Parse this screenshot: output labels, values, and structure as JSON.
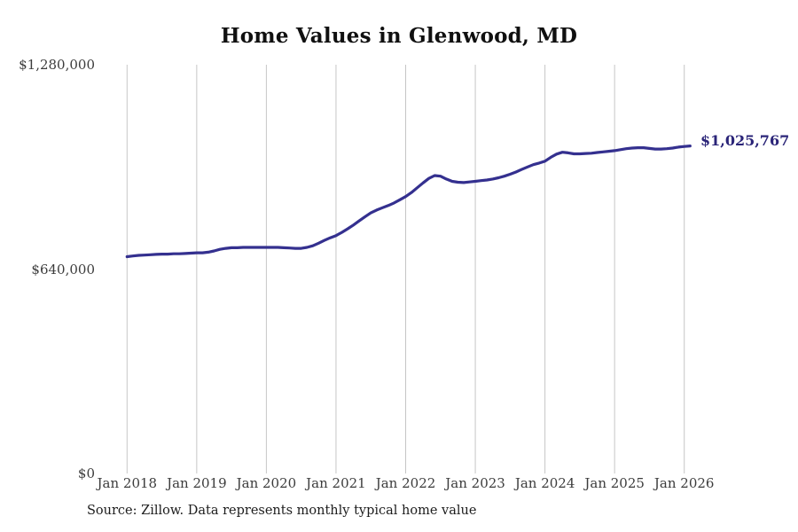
{
  "page": {
    "title": "Home Values in Glenwood, MD",
    "source": "Source: Zillow. Data represents monthly typical home value"
  },
  "chart_data": {
    "type": "line",
    "title": "Home Values in Glenwood, MD",
    "series_name": "Monthly typical home value",
    "ylim": [
      0,
      1280000
    ],
    "grid": "vertical-only",
    "legend": "none",
    "line_color": "#34308f",
    "latest_label_color": "#2a2478",
    "grid_color": "#c6c6c6",
    "tick_color": "#3c3c3c",
    "latest_value": 1025767,
    "latest_value_label": "$1,025,767",
    "y_ticks": [
      {
        "value": 0,
        "label": "$0"
      },
      {
        "value": 640000,
        "label": "$640,000"
      },
      {
        "value": 1280000,
        "label": "$1,280,000"
      }
    ],
    "x_ticks": [
      "Jan 2018",
      "Jan 2019",
      "Jan 2020",
      "Jan 2021",
      "Jan 2022",
      "Jan 2023",
      "Jan 2024",
      "Jan 2025",
      "Jan 2026"
    ],
    "x_months": [
      "2018-01",
      "2018-02",
      "2018-03",
      "2018-04",
      "2018-05",
      "2018-06",
      "2018-07",
      "2018-08",
      "2018-09",
      "2018-10",
      "2018-11",
      "2018-12",
      "2019-01",
      "2019-02",
      "2019-03",
      "2019-04",
      "2019-05",
      "2019-06",
      "2019-07",
      "2019-08",
      "2019-09",
      "2019-10",
      "2019-11",
      "2019-12",
      "2020-01",
      "2020-02",
      "2020-03",
      "2020-04",
      "2020-05",
      "2020-06",
      "2020-07",
      "2020-08",
      "2020-09",
      "2020-10",
      "2020-11",
      "2020-12",
      "2021-01",
      "2021-02",
      "2021-03",
      "2021-04",
      "2021-05",
      "2021-06",
      "2021-07",
      "2021-08",
      "2021-09",
      "2021-10",
      "2021-11",
      "2021-12",
      "2022-01",
      "2022-02",
      "2022-03",
      "2022-04",
      "2022-05",
      "2022-06",
      "2022-07",
      "2022-08",
      "2022-09",
      "2022-10",
      "2022-11",
      "2022-12",
      "2023-01",
      "2023-02",
      "2023-03",
      "2023-04",
      "2023-05",
      "2023-06",
      "2023-07",
      "2023-08",
      "2023-09",
      "2023-10",
      "2023-11",
      "2023-12",
      "2024-01",
      "2024-02",
      "2024-03",
      "2024-04",
      "2024-05",
      "2024-06",
      "2024-07",
      "2024-08",
      "2024-09",
      "2024-10",
      "2024-11",
      "2024-12",
      "2025-01",
      "2025-02",
      "2025-03",
      "2025-04",
      "2025-05",
      "2025-06",
      "2025-07",
      "2025-08",
      "2025-09",
      "2025-10",
      "2025-11",
      "2025-12",
      "2026-01",
      "2026-02"
    ],
    "values": [
      679000,
      681000,
      683000,
      684000,
      685000,
      686000,
      687000,
      687000,
      688000,
      688000,
      689000,
      690000,
      691000,
      691000,
      693000,
      697000,
      702000,
      705000,
      707000,
      707000,
      708000,
      708000,
      708000,
      708000,
      708000,
      708000,
      708000,
      707000,
      706000,
      705000,
      705000,
      708000,
      713000,
      721000,
      730000,
      738000,
      745000,
      755000,
      766000,
      778000,
      791000,
      804000,
      816000,
      825000,
      832000,
      839000,
      847000,
      857000,
      867000,
      880000,
      895000,
      910000,
      924000,
      933000,
      931000,
      922000,
      915000,
      912000,
      911000,
      913000,
      915000,
      917000,
      919000,
      922000,
      926000,
      931000,
      937000,
      944000,
      952000,
      960000,
      967000,
      972000,
      978000,
      990000,
      1000000,
      1006000,
      1004000,
      1001000,
      1001000,
      1002000,
      1003000,
      1005000,
      1007000,
      1009000,
      1011000,
      1014000,
      1017000,
      1019000,
      1020000,
      1020000,
      1018000,
      1016000,
      1016000,
      1017000,
      1019000,
      1022000,
      1024000,
      1025767
    ],
    "source": "Source: Zillow. Data represents monthly typical home value"
  }
}
